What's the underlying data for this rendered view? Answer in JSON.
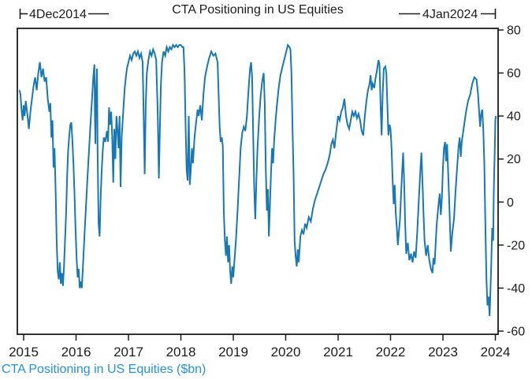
{
  "title": "CTA Positioning in US Equities",
  "caption": "CTA Positioning in US Equities ($bn)",
  "annotations": {
    "start": "4Dec2014",
    "end": "4Jan2024"
  },
  "colors": {
    "series": "#1878b6",
    "caption": "#2492dc",
    "axis": "#1c1c1c",
    "background": "#ffffff"
  },
  "chart_data": {
    "type": "line",
    "title": "CTA Positioning in US Equities",
    "series_name": "CTA Positioning in US Equities ($bn)",
    "units": "$bn",
    "start_label": "4Dec2014",
    "end_label": "4Jan2024",
    "grid": false,
    "legend_position": "none",
    "y_axis_side": "right",
    "x_ticks": [
      2015,
      2016,
      2017,
      2018,
      2019,
      2020,
      2021,
      2022,
      2023,
      2024
    ],
    "y_ticks": [
      80,
      60,
      40,
      20,
      0,
      -20,
      -40,
      -60
    ],
    "xlim": [
      2014.92,
      2024.06
    ],
    "ylim": [
      -61.5,
      83
    ],
    "points": [
      [
        2014.92,
        52
      ],
      [
        2014.94,
        50
      ],
      [
        2014.96,
        43
      ],
      [
        2014.98,
        38
      ],
      [
        2015.0,
        45
      ],
      [
        2015.02,
        40
      ],
      [
        2015.04,
        47
      ],
      [
        2015.06,
        43
      ],
      [
        2015.08,
        39
      ],
      [
        2015.1,
        34
      ],
      [
        2015.13,
        42
      ],
      [
        2015.16,
        48
      ],
      [
        2015.19,
        54
      ],
      [
        2015.22,
        58
      ],
      [
        2015.25,
        52
      ],
      [
        2015.28,
        60
      ],
      [
        2015.31,
        65
      ],
      [
        2015.34,
        58
      ],
      [
        2015.37,
        62
      ],
      [
        2015.4,
        56
      ],
      [
        2015.43,
        58
      ],
      [
        2015.46,
        48
      ],
      [
        2015.49,
        42
      ],
      [
        2015.51,
        46
      ],
      [
        2015.53,
        30
      ],
      [
        2015.55,
        38
      ],
      [
        2015.57,
        16
      ],
      [
        2015.59,
        25
      ],
      [
        2015.61,
        5
      ],
      [
        2015.63,
        -18
      ],
      [
        2015.65,
        -32
      ],
      [
        2015.67,
        -36
      ],
      [
        2015.69,
        -28
      ],
      [
        2015.71,
        -38
      ],
      [
        2015.73,
        -33
      ],
      [
        2015.75,
        -39
      ],
      [
        2015.77,
        -30
      ],
      [
        2015.79,
        -18
      ],
      [
        2015.81,
        -5
      ],
      [
        2015.83,
        12
      ],
      [
        2015.85,
        24
      ],
      [
        2015.87,
        31
      ],
      [
        2015.89,
        36
      ],
      [
        2015.91,
        37
      ],
      [
        2015.93,
        29
      ],
      [
        2015.95,
        18
      ],
      [
        2015.97,
        4
      ],
      [
        2015.99,
        -12
      ],
      [
        2016.01,
        -26
      ],
      [
        2016.03,
        -35
      ],
      [
        2016.05,
        -31
      ],
      [
        2016.07,
        -40
      ],
      [
        2016.09,
        -37
      ],
      [
        2016.11,
        -40
      ],
      [
        2016.13,
        -31
      ],
      [
        2016.16,
        -16
      ],
      [
        2016.19,
        -2
      ],
      [
        2016.22,
        12
      ],
      [
        2016.25,
        25
      ],
      [
        2016.28,
        38
      ],
      [
        2016.31,
        50
      ],
      [
        2016.33,
        58
      ],
      [
        2016.35,
        64
      ],
      [
        2016.36,
        40
      ],
      [
        2016.37,
        27
      ],
      [
        2016.38,
        50
      ],
      [
        2016.4,
        62
      ],
      [
        2016.41,
        25
      ],
      [
        2016.43,
        -10
      ],
      [
        2016.45,
        -16
      ],
      [
        2016.47,
        3
      ],
      [
        2016.49,
        15
      ],
      [
        2016.51,
        24
      ],
      [
        2016.53,
        30
      ],
      [
        2016.56,
        28
      ],
      [
        2016.59,
        33
      ],
      [
        2016.61,
        28
      ],
      [
        2016.63,
        44
      ],
      [
        2016.65,
        36
      ],
      [
        2016.67,
        42
      ],
      [
        2016.69,
        30
      ],
      [
        2016.71,
        9
      ],
      [
        2016.73,
        34
      ],
      [
        2016.75,
        20
      ],
      [
        2016.77,
        40
      ],
      [
        2016.79,
        34
      ],
      [
        2016.81,
        25
      ],
      [
        2016.83,
        40
      ],
      [
        2016.85,
        7
      ],
      [
        2016.87,
        30
      ],
      [
        2016.89,
        38
      ],
      [
        2016.91,
        46
      ],
      [
        2016.93,
        53
      ],
      [
        2016.95,
        58
      ],
      [
        2016.97,
        62
      ],
      [
        2017.0,
        65
      ],
      [
        2017.03,
        68
      ],
      [
        2017.06,
        66
      ],
      [
        2017.09,
        69
      ],
      [
        2017.12,
        70
      ],
      [
        2017.15,
        68
      ],
      [
        2017.18,
        70
      ],
      [
        2017.21,
        67
      ],
      [
        2017.24,
        69
      ],
      [
        2017.27,
        65
      ],
      [
        2017.29,
        40
      ],
      [
        2017.31,
        13
      ],
      [
        2017.33,
        45
      ],
      [
        2017.35,
        60
      ],
      [
        2017.38,
        66
      ],
      [
        2017.41,
        70
      ],
      [
        2017.44,
        68
      ],
      [
        2017.47,
        71
      ],
      [
        2017.5,
        69
      ],
      [
        2017.53,
        66
      ],
      [
        2017.56,
        40
      ],
      [
        2017.58,
        11
      ],
      [
        2017.6,
        35
      ],
      [
        2017.62,
        55
      ],
      [
        2017.64,
        65
      ],
      [
        2017.67,
        70
      ],
      [
        2017.7,
        68
      ],
      [
        2017.73,
        72
      ],
      [
        2017.76,
        70
      ],
      [
        2017.79,
        72
      ],
      [
        2017.82,
        71
      ],
      [
        2017.85,
        73
      ],
      [
        2017.88,
        72
      ],
      [
        2017.91,
        73
      ],
      [
        2017.94,
        72
      ],
      [
        2017.97,
        73
      ],
      [
        2018.0,
        73
      ],
      [
        2018.03,
        72
      ],
      [
        2018.05,
        72
      ],
      [
        2018.07,
        60
      ],
      [
        2018.09,
        35
      ],
      [
        2018.11,
        15
      ],
      [
        2018.13,
        10
      ],
      [
        2018.15,
        40
      ],
      [
        2018.17,
        8
      ],
      [
        2018.19,
        15
      ],
      [
        2018.21,
        25
      ],
      [
        2018.23,
        18
      ],
      [
        2018.26,
        30
      ],
      [
        2018.29,
        37
      ],
      [
        2018.32,
        43
      ],
      [
        2018.34,
        40
      ],
      [
        2018.37,
        45
      ],
      [
        2018.4,
        38
      ],
      [
        2018.43,
        50
      ],
      [
        2018.46,
        58
      ],
      [
        2018.5,
        63
      ],
      [
        2018.54,
        67
      ],
      [
        2018.58,
        70
      ],
      [
        2018.62,
        68
      ],
      [
        2018.66,
        69
      ],
      [
        2018.7,
        65
      ],
      [
        2018.72,
        50
      ],
      [
        2018.74,
        35
      ],
      [
        2018.76,
        28
      ],
      [
        2018.78,
        30
      ],
      [
        2018.8,
        26
      ],
      [
        2018.82,
        -5
      ],
      [
        2018.84,
        -18
      ],
      [
        2018.86,
        -25
      ],
      [
        2018.88,
        -16
      ],
      [
        2018.9,
        -28
      ],
      [
        2018.92,
        -20
      ],
      [
        2018.94,
        -32
      ],
      [
        2018.96,
        -38
      ],
      [
        2018.98,
        -30
      ],
      [
        2019.0,
        -35
      ],
      [
        2019.02,
        -28
      ],
      [
        2019.05,
        -18
      ],
      [
        2019.08,
        -5
      ],
      [
        2019.11,
        10
      ],
      [
        2019.14,
        25
      ],
      [
        2019.17,
        32
      ],
      [
        2019.2,
        35
      ],
      [
        2019.23,
        33
      ],
      [
        2019.26,
        40
      ],
      [
        2019.29,
        52
      ],
      [
        2019.32,
        62
      ],
      [
        2019.34,
        65
      ],
      [
        2019.36,
        58
      ],
      [
        2019.38,
        30
      ],
      [
        2019.4,
        6
      ],
      [
        2019.42,
        -8
      ],
      [
        2019.44,
        10
      ],
      [
        2019.46,
        24
      ],
      [
        2019.49,
        38
      ],
      [
        2019.52,
        49
      ],
      [
        2019.55,
        56
      ],
      [
        2019.58,
        60
      ],
      [
        2019.6,
        46
      ],
      [
        2019.62,
        16
      ],
      [
        2019.64,
        -4
      ],
      [
        2019.66,
        6
      ],
      [
        2019.68,
        -16
      ],
      [
        2019.7,
        0
      ],
      [
        2019.72,
        14
      ],
      [
        2019.74,
        25
      ],
      [
        2019.76,
        18
      ],
      [
        2019.78,
        29
      ],
      [
        2019.81,
        39
      ],
      [
        2019.84,
        47
      ],
      [
        2019.87,
        54
      ],
      [
        2019.9,
        59
      ],
      [
        2019.93,
        62
      ],
      [
        2019.96,
        65
      ],
      [
        2019.98,
        67
      ],
      [
        2020.01,
        70
      ],
      [
        2020.04,
        73
      ],
      [
        2020.07,
        72
      ],
      [
        2020.09,
        71
      ],
      [
        2020.11,
        60
      ],
      [
        2020.13,
        35
      ],
      [
        2020.15,
        13
      ],
      [
        2020.17,
        -18
      ],
      [
        2020.19,
        -25
      ],
      [
        2020.21,
        -30
      ],
      [
        2020.23,
        -22
      ],
      [
        2020.25,
        -28
      ],
      [
        2020.28,
        -16
      ],
      [
        2020.31,
        -13
      ],
      [
        2020.34,
        -15
      ],
      [
        2020.37,
        -10
      ],
      [
        2020.4,
        -12
      ],
      [
        2020.44,
        -7
      ],
      [
        2020.48,
        -9
      ],
      [
        2020.52,
        -3
      ],
      [
        2020.56,
        1
      ],
      [
        2020.6,
        4
      ],
      [
        2020.64,
        7
      ],
      [
        2020.68,
        10
      ],
      [
        2020.72,
        13
      ],
      [
        2020.76,
        15
      ],
      [
        2020.8,
        18
      ],
      [
        2020.84,
        22
      ],
      [
        2020.87,
        27
      ],
      [
        2020.9,
        29
      ],
      [
        2020.93,
        25
      ],
      [
        2020.96,
        32
      ],
      [
        2020.98,
        36
      ],
      [
        2021.0,
        40
      ],
      [
        2021.03,
        38
      ],
      [
        2021.06,
        42
      ],
      [
        2021.09,
        44
      ],
      [
        2021.12,
        48
      ],
      [
        2021.15,
        40
      ],
      [
        2021.18,
        36
      ],
      [
        2021.21,
        34
      ],
      [
        2021.24,
        38
      ],
      [
        2021.27,
        42
      ],
      [
        2021.3,
        40
      ],
      [
        2021.33,
        42
      ],
      [
        2021.36,
        39
      ],
      [
        2021.39,
        41
      ],
      [
        2021.42,
        38
      ],
      [
        2021.45,
        33
      ],
      [
        2021.48,
        31
      ],
      [
        2021.51,
        40
      ],
      [
        2021.54,
        47
      ],
      [
        2021.57,
        52
      ],
      [
        2021.6,
        55
      ],
      [
        2021.62,
        59
      ],
      [
        2021.64,
        52
      ],
      [
        2021.66,
        55
      ],
      [
        2021.69,
        53
      ],
      [
        2021.71,
        57
      ],
      [
        2021.74,
        61
      ],
      [
        2021.77,
        66
      ],
      [
        2021.79,
        64
      ],
      [
        2021.81,
        45
      ],
      [
        2021.83,
        31
      ],
      [
        2021.85,
        50
      ],
      [
        2021.87,
        62
      ],
      [
        2021.9,
        63
      ],
      [
        2021.92,
        60
      ],
      [
        2021.94,
        45
      ],
      [
        2021.96,
        31
      ],
      [
        2021.98,
        36
      ],
      [
        2022.0,
        34
      ],
      [
        2022.02,
        25
      ],
      [
        2022.04,
        10
      ],
      [
        2022.06,
        -1
      ],
      [
        2022.08,
        8
      ],
      [
        2022.1,
        -5
      ],
      [
        2022.12,
        -12
      ],
      [
        2022.14,
        -20
      ],
      [
        2022.16,
        -14
      ],
      [
        2022.18,
        -8
      ],
      [
        2022.2,
        3
      ],
      [
        2022.22,
        13
      ],
      [
        2022.24,
        23
      ],
      [
        2022.26,
        9
      ],
      [
        2022.28,
        -10
      ],
      [
        2022.3,
        -24
      ],
      [
        2022.33,
        -19
      ],
      [
        2022.36,
        -27
      ],
      [
        2022.39,
        -24
      ],
      [
        2022.42,
        -28
      ],
      [
        2022.45,
        -23
      ],
      [
        2022.48,
        -26
      ],
      [
        2022.51,
        -14
      ],
      [
        2022.54,
        1
      ],
      [
        2022.57,
        15
      ],
      [
        2022.59,
        23
      ],
      [
        2022.61,
        9
      ],
      [
        2022.63,
        -6
      ],
      [
        2022.65,
        -18
      ],
      [
        2022.68,
        -25
      ],
      [
        2022.71,
        -20
      ],
      [
        2022.74,
        -27
      ],
      [
        2022.77,
        -31
      ],
      [
        2022.8,
        -33
      ],
      [
        2022.82,
        -26
      ],
      [
        2022.84,
        -29
      ],
      [
        2022.86,
        -20
      ],
      [
        2022.88,
        -11
      ],
      [
        2022.9,
        -5
      ],
      [
        2022.92,
        0
      ],
      [
        2022.94,
        4
      ],
      [
        2022.96,
        -6
      ],
      [
        2022.98,
        2
      ],
      [
        2023.0,
        16
      ],
      [
        2023.02,
        25
      ],
      [
        2023.04,
        28
      ],
      [
        2023.06,
        19
      ],
      [
        2023.08,
        27
      ],
      [
        2023.1,
        14
      ],
      [
        2023.12,
        0
      ],
      [
        2023.15,
        -23
      ],
      [
        2023.18,
        -14
      ],
      [
        2023.21,
        -8
      ],
      [
        2023.24,
        5
      ],
      [
        2023.27,
        16
      ],
      [
        2023.3,
        26
      ],
      [
        2023.32,
        30
      ],
      [
        2023.34,
        21
      ],
      [
        2023.36,
        28
      ],
      [
        2023.4,
        35
      ],
      [
        2023.44,
        42
      ],
      [
        2023.48,
        47
      ],
      [
        2023.52,
        50
      ],
      [
        2023.56,
        55
      ],
      [
        2023.6,
        58
      ],
      [
        2023.64,
        57
      ],
      [
        2023.67,
        50
      ],
      [
        2023.69,
        42
      ],
      [
        2023.71,
        35
      ],
      [
        2023.73,
        41
      ],
      [
        2023.75,
        43
      ],
      [
        2023.77,
        34
      ],
      [
        2023.79,
        18
      ],
      [
        2023.81,
        -12
      ],
      [
        2023.83,
        -36
      ],
      [
        2023.85,
        -48
      ],
      [
        2023.87,
        -44
      ],
      [
        2023.89,
        -53
      ],
      [
        2023.9,
        -46
      ],
      [
        2023.92,
        -30
      ],
      [
        2023.94,
        -12
      ],
      [
        2023.96,
        -18
      ],
      [
        2023.97,
        5
      ],
      [
        2023.99,
        25
      ],
      [
        2024.0,
        38
      ],
      [
        2024.01,
        40
      ]
    ]
  }
}
